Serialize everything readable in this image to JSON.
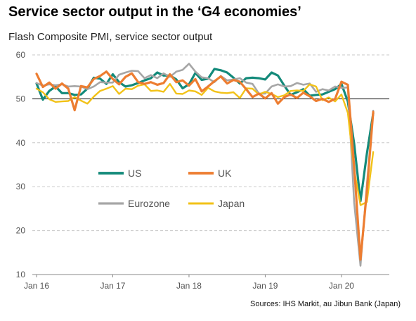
{
  "title": "Service sector output in the ‘G4 economies’",
  "subtitle": "Flash Composite PMI, service sector output",
  "source": "Sources: IHS Markit, au Jibun Bank (Japan)",
  "chart_data": {
    "type": "line",
    "ylim": [
      10,
      60
    ],
    "yticks": [
      10,
      20,
      30,
      40,
      50,
      60
    ],
    "xticks": [
      {
        "label": "Jan 16",
        "index": 0
      },
      {
        "label": "Jan 17",
        "index": 12
      },
      {
        "label": "Jan 18",
        "index": 24
      },
      {
        "label": "Jan 19",
        "index": 36
      },
      {
        "label": "Jan 20",
        "index": 48
      }
    ],
    "reference_line": 50,
    "grid": "horizontal-dashed",
    "x_start": "Jan 2016",
    "x_end": "Jun 2020",
    "legend": [
      {
        "key": "us",
        "label": "US"
      },
      {
        "key": "uk",
        "label": "UK"
      },
      {
        "key": "eurozone",
        "label": "Eurozone"
      },
      {
        "key": "japan",
        "label": "Japan"
      }
    ],
    "series": [
      {
        "key": "us",
        "name": "US",
        "color": "#138a7a",
        "width": 3.2,
        "values": [
          53.5,
          49.8,
          51.8,
          52.8,
          51.3,
          51.3,
          50.9,
          51.0,
          52.3,
          54.8,
          54.6,
          53.4,
          55.6,
          53.8,
          52.8,
          53.1,
          53.6,
          54.2,
          54.7,
          56.0,
          55.3,
          55.3,
          54.4,
          52.4,
          53.3,
          55.9,
          54.3,
          54.6,
          56.8,
          56.5,
          56.0,
          54.8,
          53.5,
          54.7,
          54.8,
          54.7,
          54.4,
          56.0,
          55.3,
          53.0,
          50.9,
          51.5,
          52.2,
          50.7,
          50.9,
          51.0,
          51.6,
          52.2,
          53.4,
          49.4,
          39.8,
          26.7,
          37.5,
          46.7
        ]
      },
      {
        "key": "eurozone",
        "name": "Eurozone",
        "color": "#a6a6a6",
        "width": 2.6,
        "values": [
          53.6,
          53.0,
          53.3,
          53.1,
          53.3,
          52.8,
          52.9,
          52.8,
          52.2,
          52.8,
          53.8,
          53.7,
          53.7,
          55.5,
          56.0,
          56.4,
          56.3,
          54.7,
          55.4,
          54.7,
          55.8,
          55.0,
          56.2,
          56.6,
          58.0,
          56.2,
          54.9,
          54.7,
          53.8,
          55.2,
          54.2,
          54.4,
          54.7,
          53.7,
          53.4,
          51.2,
          51.2,
          52.8,
          53.3,
          52.8,
          52.9,
          53.6,
          53.2,
          53.5,
          51.6,
          52.2,
          51.9,
          52.8,
          52.5,
          52.6,
          26.4,
          12.0,
          30.5,
          47.3
        ]
      },
      {
        "key": "japan",
        "name": "Japan",
        "color": "#f2c218",
        "width": 2.4,
        "values": [
          52.3,
          51.5,
          49.9,
          49.3,
          49.4,
          49.5,
          50.4,
          49.6,
          48.9,
          50.5,
          51.8,
          52.3,
          52.9,
          51.1,
          52.3,
          52.2,
          53.0,
          53.3,
          51.8,
          51.9,
          51.6,
          53.4,
          51.2,
          51.1,
          51.9,
          51.7,
          50.9,
          52.5,
          51.7,
          51.4,
          51.3,
          51.5,
          50.2,
          52.4,
          52.3,
          51.0,
          51.6,
          51.1,
          50.4,
          50.8,
          51.8,
          51.9,
          51.8,
          53.3,
          52.8,
          49.7,
          50.3,
          49.4,
          51.0,
          46.8,
          33.8,
          25.8,
          26.5,
          37.9
        ]
      },
      {
        "key": "uk",
        "name": "UK",
        "color": "#ed7d31",
        "width": 3.2,
        "values": [
          55.7,
          52.7,
          53.7,
          52.3,
          53.5,
          52.3,
          47.4,
          52.9,
          52.6,
          54.5,
          55.2,
          56.2,
          54.5,
          53.3,
          55.0,
          55.8,
          53.8,
          53.4,
          53.8,
          53.2,
          53.6,
          55.6,
          53.8,
          54.2,
          53.0,
          54.5,
          51.7,
          52.8,
          54.0,
          55.1,
          53.5,
          54.3,
          53.9,
          52.2,
          50.4,
          51.2,
          50.1,
          51.3,
          48.9,
          50.4,
          51.0,
          50.2,
          51.4,
          50.6,
          49.5,
          50.0,
          49.3,
          50.0,
          53.9,
          53.2,
          34.5,
          13.4,
          29.0,
          47.0
        ]
      }
    ]
  }
}
